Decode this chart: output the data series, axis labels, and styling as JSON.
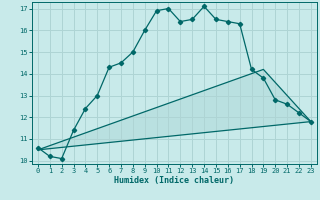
{
  "xlabel": "Humidex (Indice chaleur)",
  "bg_color": "#c8eaea",
  "grid_color": "#aed4d4",
  "line_color": "#006868",
  "xlim": [
    -0.5,
    23.5
  ],
  "ylim": [
    9.85,
    17.3
  ],
  "x_ticks": [
    0,
    1,
    2,
    3,
    4,
    5,
    6,
    7,
    8,
    9,
    10,
    11,
    12,
    13,
    14,
    15,
    16,
    17,
    18,
    19,
    20,
    21,
    22,
    23
  ],
  "y_ticks": [
    10,
    11,
    12,
    13,
    14,
    15,
    16,
    17
  ],
  "line1_x": [
    0,
    1,
    2,
    3,
    4,
    5,
    6,
    7,
    8,
    9,
    10,
    11,
    12,
    13,
    14,
    15,
    16,
    17,
    18,
    19,
    20,
    21,
    22,
    23
  ],
  "line1_y": [
    10.6,
    10.2,
    10.1,
    11.4,
    12.4,
    13.0,
    14.3,
    14.5,
    15.0,
    16.0,
    16.9,
    17.0,
    16.4,
    16.5,
    17.1,
    16.5,
    16.4,
    16.3,
    14.2,
    13.8,
    12.8,
    12.6,
    12.2,
    11.8
  ],
  "line2_x": [
    0,
    19,
    23
  ],
  "line2_y": [
    10.5,
    14.2,
    11.8
  ],
  "line3_x": [
    0,
    23
  ],
  "line3_y": [
    10.5,
    11.8
  ],
  "xlabel_fontsize": 6,
  "tick_fontsize": 5,
  "linewidth": 0.9,
  "markersize": 2.2
}
